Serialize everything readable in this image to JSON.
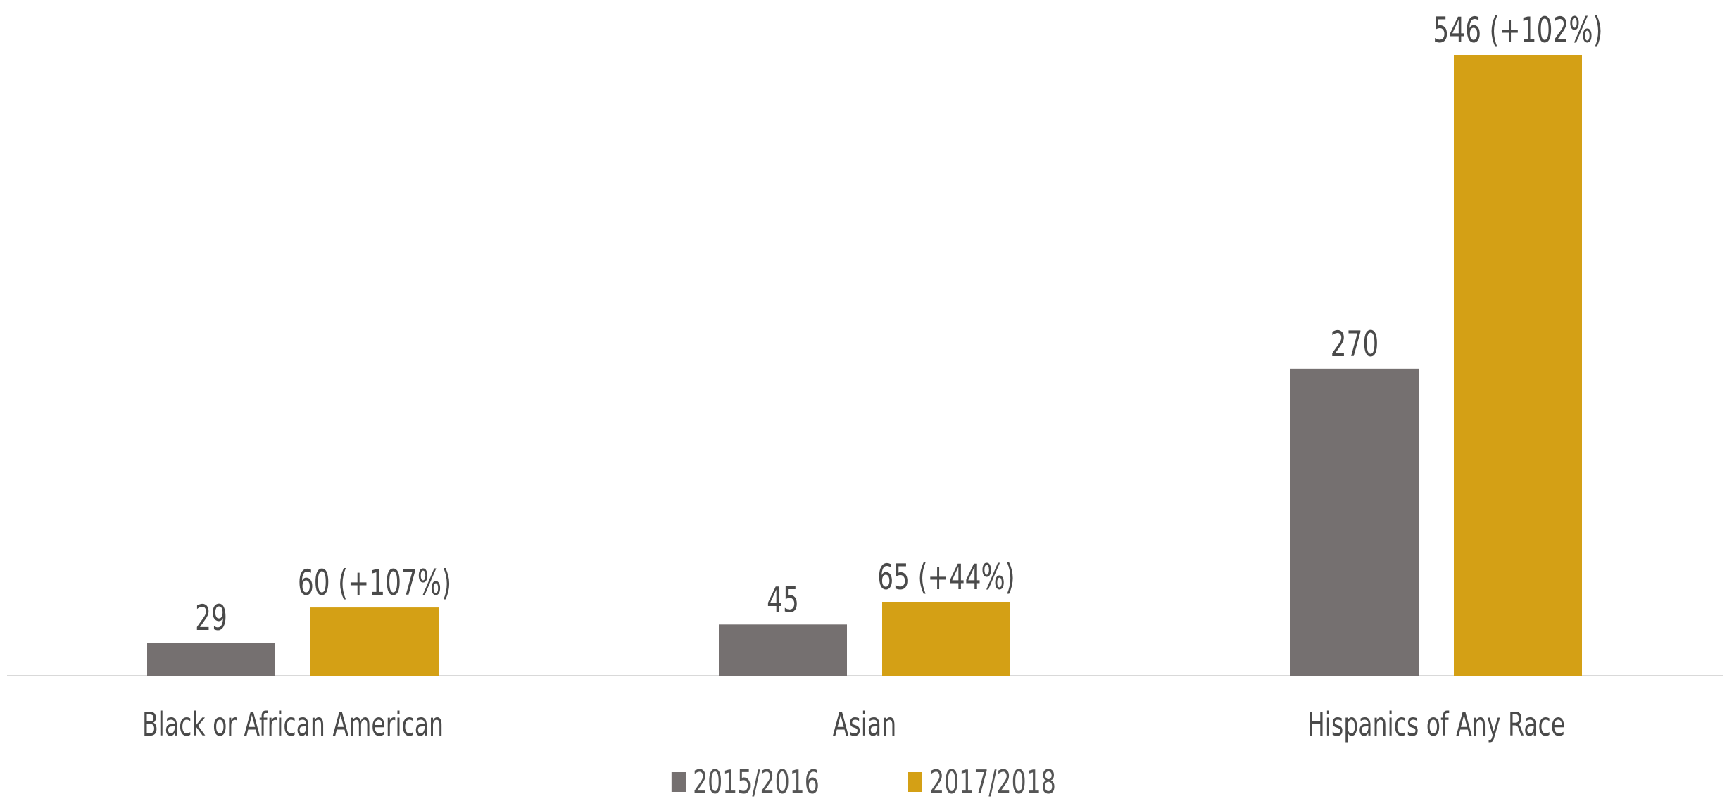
{
  "chart_data": {
    "type": "bar",
    "categories": [
      "Black or African American",
      "Asian",
      "Hispanics of Any Race"
    ],
    "series": [
      {
        "name": "2015/2016",
        "color": "#757070",
        "values": [
          29,
          45,
          270
        ],
        "labels": [
          "29",
          "45",
          "270"
        ]
      },
      {
        "name": "2017/2018",
        "color": "#d4a015",
        "values": [
          60,
          65,
          546
        ],
        "labels": [
          "60 (+107%)",
          "65 (+44%)",
          "546 (+102%)"
        ]
      }
    ],
    "ylim": [
      0,
      546
    ],
    "grid": false,
    "legend_position": "bottom"
  }
}
